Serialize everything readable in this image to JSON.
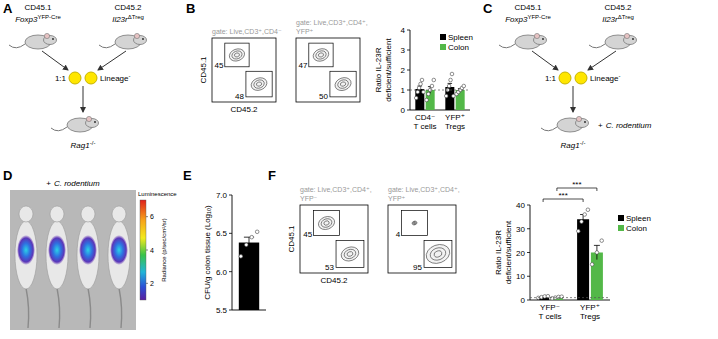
{
  "panel_labels": [
    "A",
    "B",
    "C",
    "D",
    "E",
    "F"
  ],
  "schemes": [
    {
      "left": {
        "congenic": "CD45.1",
        "genotype": {
          "text": "Foxp3",
          "sup": "YFP-Cre"
        }
      },
      "right": {
        "congenic": "CD45.2",
        "genotype": {
          "text": "Il23r",
          "sup": "ΔTreg"
        }
      },
      "ratio": "1:1",
      "cells": {
        "text": "Lineage",
        "sup": "-"
      },
      "recipient": {
        "text": "Rag1",
        "sup": "-/-"
      }
    },
    {
      "left": {
        "congenic": "CD45.1",
        "genotype": {
          "text": "Foxp3",
          "sup": "YFP-Cre"
        }
      },
      "right": {
        "congenic": "CD45.2",
        "genotype": {
          "text": "Il23r",
          "sup": "ΔTreg"
        }
      },
      "ratio": "1:1",
      "cells": {
        "text": "Lineage",
        "sup": "-"
      },
      "recipient": {
        "text": "Rag1",
        "sup": "-/-"
      },
      "treatment": {
        "prefix": "+",
        "organism": "C. rodentium"
      }
    }
  ],
  "flow": [
    {
      "x_label": "CD45.2",
      "y_label": "CD45.1",
      "plots": [
        {
          "gate": [
            "gate: Live,CD3⁺,CD4⁻"
          ],
          "upper": 45,
          "lower": 48
        },
        {
          "gate": [
            "gate: Live,CD3⁺,CD4⁺,",
            "YFP⁺"
          ],
          "upper": 47,
          "lower": 50
        }
      ]
    },
    {
      "x_label": "CD45.2",
      "y_label": "CD45.1",
      "plots": [
        {
          "gate": [
            "gate: Live,CD3⁺,CD4⁺,",
            "YFP⁻"
          ],
          "upper": 45,
          "lower": 53
        },
        {
          "gate": [
            "gate: Live,CD3⁺,CD4⁺,",
            "YFP⁺"
          ],
          "upper": 4,
          "lower": 95
        }
      ]
    }
  ],
  "imaging": {
    "treatment": {
      "prefix": "+",
      "organism": "C. rodentium"
    },
    "label": "Luminescence",
    "unit": "Radiance (p/sec/cm²/sr)",
    "range": [
      1,
      7
    ],
    "ticks": [
      6,
      4,
      2
    ]
  },
  "chart_data": [
    {
      "type": "bar",
      "y_label": [
        "Ratio IL-23R",
        "deficient/sufficient"
      ],
      "categories": [
        "CD4⁻ T cells",
        "YFP⁺ Tregs"
      ],
      "series": [
        {
          "name": "Spleen",
          "color": "#000000",
          "values": [
            1.05,
            1.15
          ],
          "errors": [
            0.15,
            0.18
          ],
          "points": [
            [
              0.6,
              0.9,
              1.1,
              1.3,
              1.5,
              0.9
            ],
            [
              0.7,
              1.0,
              1.2,
              1.5,
              1.8,
              0.7
            ]
          ]
        },
        {
          "name": "Colon",
          "color": "#53b848",
          "values": [
            1.0,
            1.0
          ],
          "errors": [
            0.17,
            0.07
          ],
          "points": [
            [
              0.5,
              0.8,
              1.0,
              1.2,
              1.5
            ],
            [
              0.8,
              0.9,
              1.0,
              1.1,
              1.2
            ]
          ]
        }
      ],
      "ylim": [
        0,
        4
      ],
      "yticks": [
        0,
        1,
        2,
        3,
        4
      ],
      "reference_line": 1,
      "legend": "top-right"
    },
    {
      "type": "bar",
      "y_label": "CFU/g colon tissue (Log₁₀)",
      "categories": [
        null
      ],
      "series": [
        {
          "color": "#000000",
          "values": [
            6.38
          ],
          "errors": [
            0.07
          ],
          "points": [
            [
              6.2,
              6.35,
              6.45,
              6.52
            ]
          ]
        }
      ],
      "ylim": [
        5.5,
        7.0
      ],
      "yticks": [
        5.5,
        {
          "value": 6,
          "label": "6.0"
        },
        6.5,
        {
          "value": 7,
          "label": "7.0"
        }
      ]
    },
    {
      "type": "bar",
      "y_label": [
        "Ratio IL-23R",
        "deficient/sufficient"
      ],
      "categories": [
        "YFP⁻ T cells",
        "YFP⁺ Tregs"
      ],
      "series": [
        {
          "name": "Spleen",
          "color": "#000000",
          "values": [
            1.3,
            34
          ],
          "errors": [
            0.2,
            2
          ],
          "points": [
            [
              0.9,
              1.2,
              1.5,
              1.6
            ],
            [
              29,
              33,
              36,
              38
            ]
          ]
        },
        {
          "name": "Colon",
          "color": "#53b848",
          "values": [
            1.1,
            20
          ],
          "errors": [
            0.15,
            3
          ],
          "points": [
            [
              0.7,
              1.0,
              1.3,
              1.4
            ],
            [
              15,
              20,
              25
            ]
          ]
        }
      ],
      "ylim": [
        0,
        40
      ],
      "yticks": [
        0,
        10,
        20,
        30,
        40
      ],
      "reference_line": 1,
      "legend": "right",
      "significance": [
        {
          "label": "***",
          "series": 0
        },
        {
          "label": "***",
          "series": 1
        }
      ]
    }
  ]
}
